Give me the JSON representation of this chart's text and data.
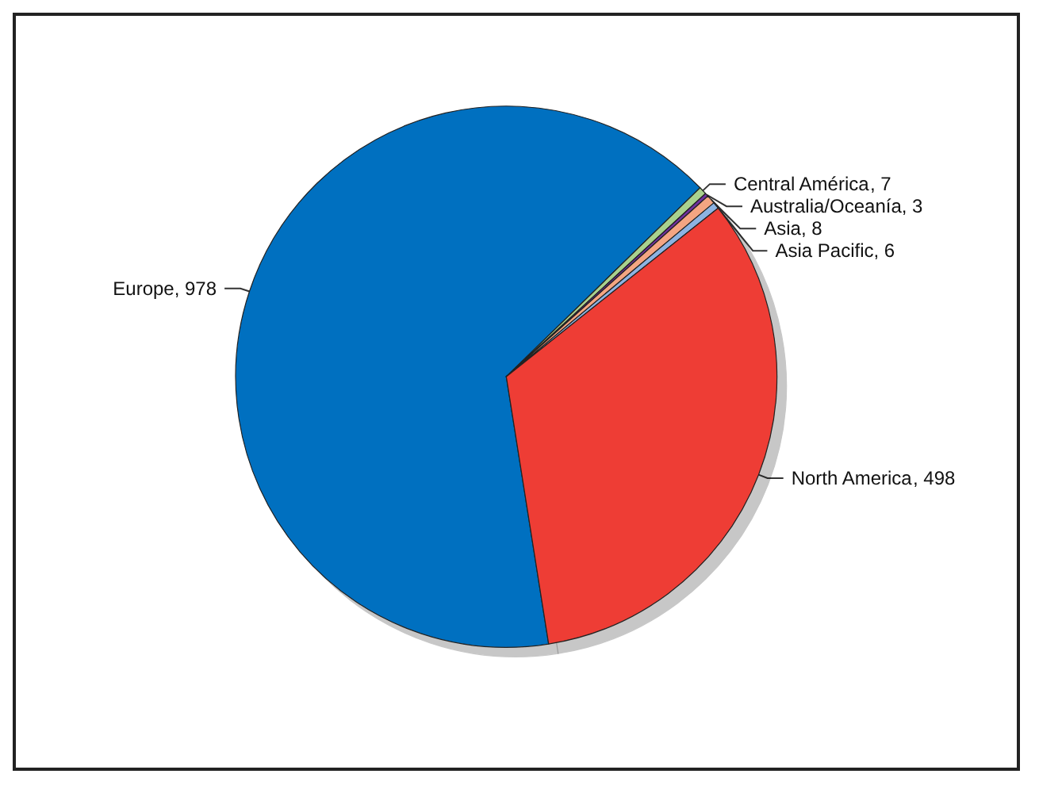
{
  "chart_data": {
    "type": "pie",
    "categories": [
      "Europe",
      "Central América",
      "Australia/Oceanía",
      "Asia",
      "Asia Pacific",
      "North America"
    ],
    "values": [
      978,
      7,
      3,
      8,
      6,
      498
    ],
    "value_labels": [
      ", 978",
      ", 7",
      ", 3",
      ", 8",
      ", 6",
      ", 498"
    ],
    "colors": [
      "#0070c0",
      "#a9d18e",
      "#7030a0",
      "#f4a582",
      "#8db3e2",
      "#ee3e34"
    ]
  }
}
